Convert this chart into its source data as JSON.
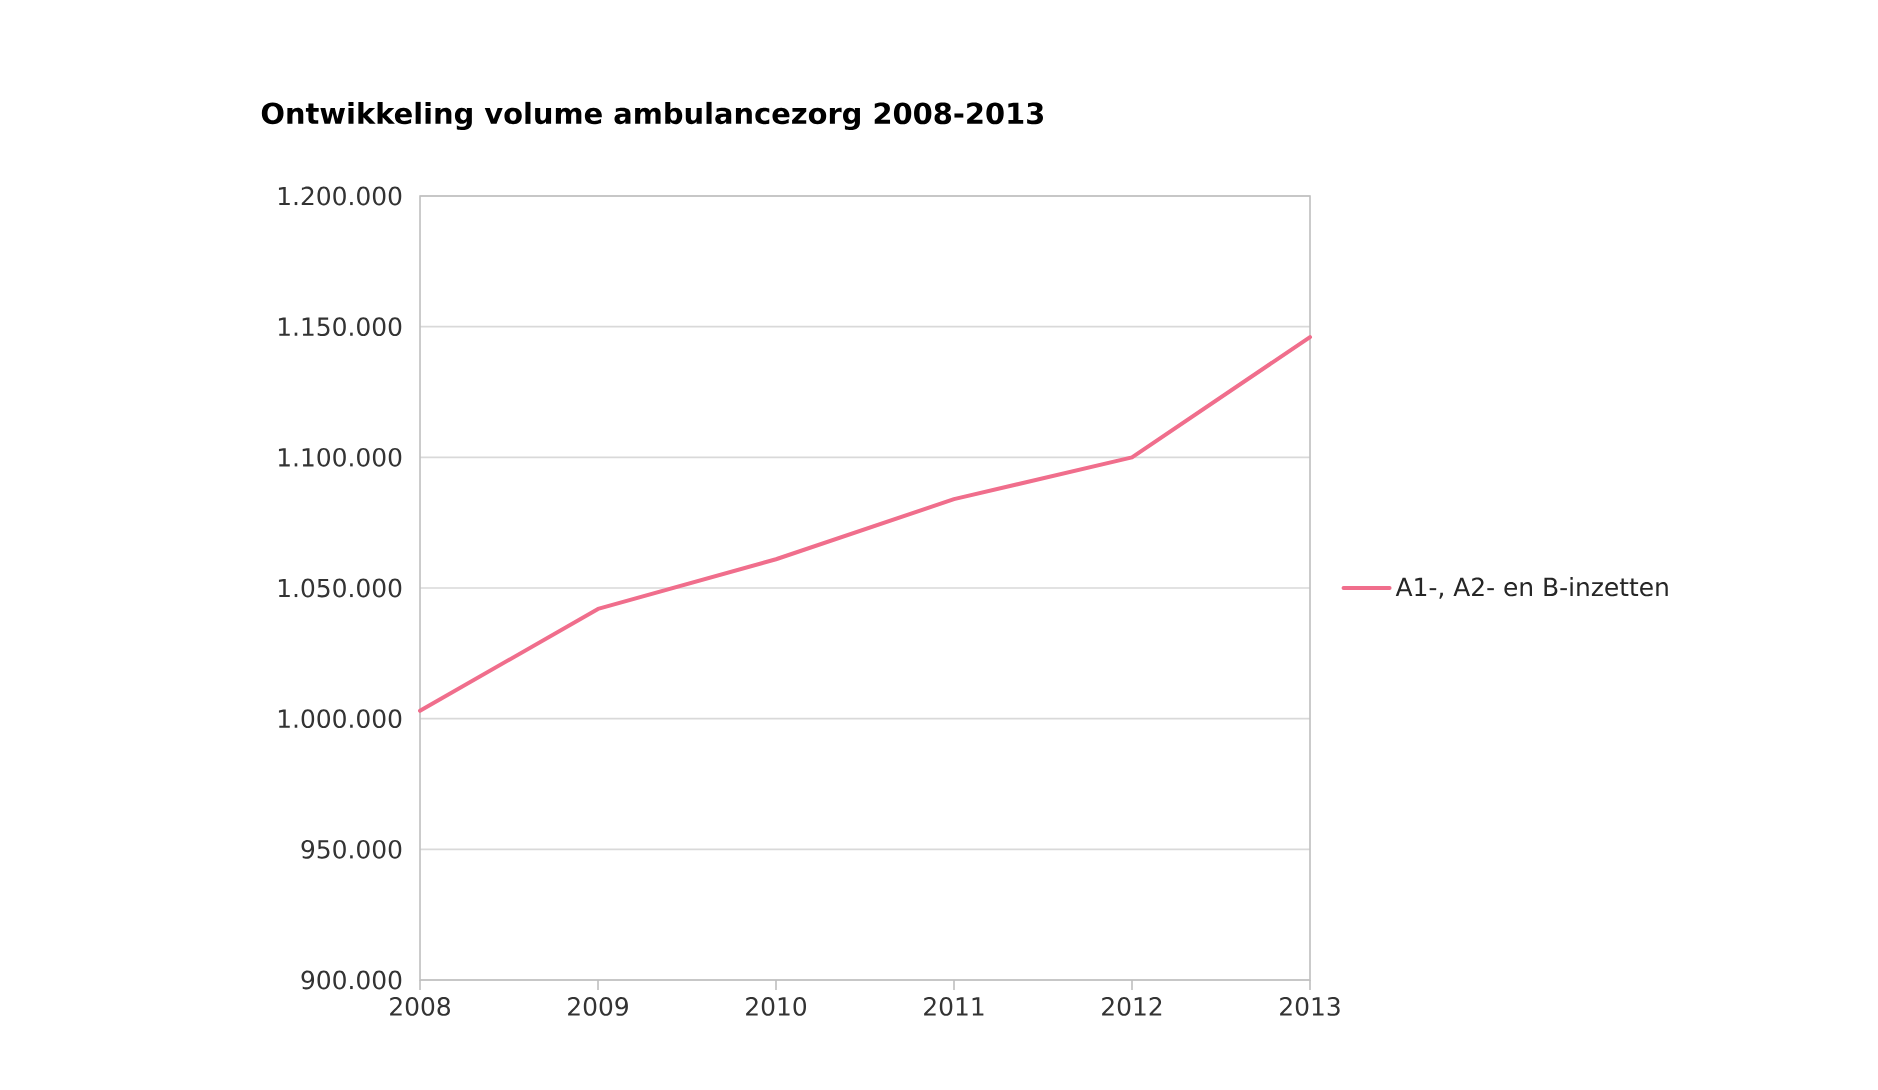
{
  "chart_data": {
    "type": "line",
    "title": "Ontwikkeling volume ambulancezorg 2008-2013",
    "categories": [
      "2008",
      "2009",
      "2010",
      "2011",
      "2012",
      "2013"
    ],
    "series": [
      {
        "name": "A1-, A2- en B-inzetten",
        "color": "#f06e8c",
        "values": [
          1003000,
          1042000,
          1061000,
          1084000,
          1100000,
          1146000
        ]
      }
    ],
    "ylim": [
      900000,
      1200000
    ],
    "yticks": [
      {
        "value": 900000,
        "label": "900.000"
      },
      {
        "value": 950000,
        "label": "950.000"
      },
      {
        "value": 1000000,
        "label": "1.000.000"
      },
      {
        "value": 1050000,
        "label": "1.050.000"
      },
      {
        "value": 1100000,
        "label": "1.100.000"
      },
      {
        "value": 1150000,
        "label": "1.150.000"
      },
      {
        "value": 1200000,
        "label": "1.200.000"
      }
    ],
    "grid": "y",
    "legend": "right"
  }
}
